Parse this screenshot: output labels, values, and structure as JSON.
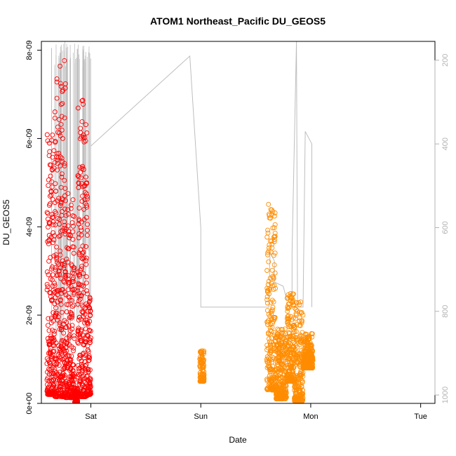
{
  "chart_data": {
    "type": "scatter",
    "title": "ATOM1 Northeast_Pacific DU_GEOS5",
    "xlabel": "Date",
    "ylabel": "DU_GEOS5",
    "x_ticks": [
      "Sat",
      "Sun",
      "Mon",
      "Tue"
    ],
    "y_ticks": [
      "0e+00",
      "2e-09",
      "4e-09",
      "6e-09",
      "8e-09"
    ],
    "y_tick_values": [
      0,
      2e-09,
      4e-09,
      6e-09,
      8e-09
    ],
    "ylim": [
      0,
      8.2e-09
    ],
    "xlim_days": [
      -0.45,
      3.13
    ],
    "right_axis": {
      "label": "",
      "ticks": [
        "200",
        "400",
        "600",
        "800",
        "1000"
      ],
      "tick_values": [
        200,
        400,
        600,
        800,
        1000
      ],
      "ylim_inverted": [
        1020,
        155
      ]
    },
    "colors": {
      "series_red": "#ff0000",
      "series_orange": "#ff8c00",
      "pressure_line": "#bebebe"
    },
    "series": [
      {
        "color": "#ff0000",
        "segments": [
          {
            "start": -0.4,
            "end": -0.33,
            "min": 2e-10,
            "max": 6.2e-09
          },
          {
            "start": -0.33,
            "end": -0.23,
            "min": 1.5e-10,
            "max": 7.8e-09
          },
          {
            "start": -0.23,
            "end": -0.15,
            "min": 1.3e-10,
            "max": 4.8e-09
          },
          {
            "start": -0.15,
            "end": -0.12,
            "min": 3e-11,
            "max": 3.5e-10
          },
          {
            "start": -0.12,
            "end": -0.03,
            "min": 1.5e-10,
            "max": 6.9e-09
          },
          {
            "start": -0.03,
            "end": 0.0,
            "min": 2e-10,
            "max": 2.4e-09
          }
        ]
      },
      {
        "color": "#ff8c00",
        "segments": [
          {
            "start": 0.99,
            "end": 1.03,
            "min": 5e-10,
            "max": 1.2e-09
          },
          {
            "start": 1.6,
            "end": 1.68,
            "min": 3e-10,
            "max": 4.6e-09
          },
          {
            "start": 1.68,
            "end": 1.78,
            "min": 1e-10,
            "max": 1.7e-09
          },
          {
            "start": 1.78,
            "end": 1.85,
            "min": 5e-10,
            "max": 2.5e-09
          },
          {
            "start": 1.85,
            "end": 1.93,
            "min": 5e-11,
            "max": 2.3e-09
          },
          {
            "start": 1.93,
            "end": 2.02,
            "min": 8e-10,
            "max": 1.6e-09
          }
        ]
      }
    ],
    "pressure": [
      [
        0.0,
        405
      ],
      [
        0.9,
        190
      ],
      [
        1.0,
        600
      ],
      [
        1.0,
        790
      ],
      [
        1.62,
        790
      ],
      [
        1.63,
        660
      ],
      [
        1.67,
        680
      ],
      [
        1.67,
        730
      ],
      [
        1.75,
        740
      ],
      [
        1.78,
        770
      ],
      [
        1.83,
        760
      ],
      [
        1.83,
        660
      ],
      [
        1.87,
        155
      ],
      [
        1.88,
        790
      ],
      [
        1.93,
        790
      ],
      [
        1.95,
        370
      ],
      [
        2.01,
        400
      ],
      [
        2.01,
        790
      ]
    ]
  }
}
